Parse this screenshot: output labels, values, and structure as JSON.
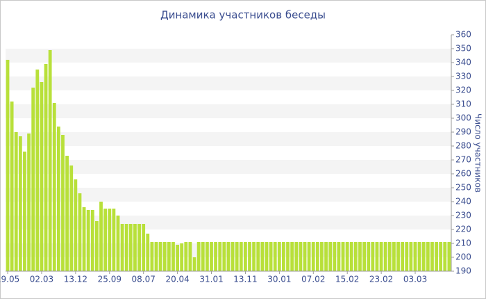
{
  "chart_data": {
    "type": "bar",
    "title": "Динамика участников беседы",
    "y_label": "Число участников",
    "categories": [
      "19.05",
      null,
      null,
      null,
      null,
      null,
      null,
      null,
      "02.03",
      null,
      null,
      null,
      null,
      null,
      null,
      null,
      "13.12",
      null,
      null,
      null,
      null,
      null,
      null,
      null,
      "25.09",
      null,
      null,
      null,
      null,
      null,
      null,
      null,
      "08.07",
      null,
      null,
      null,
      null,
      null,
      null,
      null,
      "20.04",
      null,
      null,
      null,
      null,
      null,
      null,
      null,
      "31.01",
      null,
      null,
      null,
      null,
      null,
      null,
      null,
      "13.11",
      null,
      null,
      null,
      null,
      null,
      null,
      null,
      "30.01",
      null,
      null,
      null,
      null,
      null,
      null,
      null,
      "07.02",
      null,
      null,
      null,
      null,
      null,
      null,
      null,
      "15.02",
      null,
      null,
      null,
      null,
      null,
      null,
      null,
      "23.02",
      null,
      null,
      null,
      null,
      null,
      null,
      null,
      "03.03",
      null,
      null,
      null,
      null,
      null,
      null,
      null,
      null
    ],
    "values": [
      342,
      312,
      290,
      287,
      276,
      289,
      322,
      335,
      326,
      339,
      349,
      311,
      294,
      288,
      273,
      266,
      256,
      246,
      236,
      234,
      234,
      226,
      240,
      235,
      235,
      235,
      230,
      224,
      224,
      224,
      224,
      224,
      224,
      217,
      211,
      211,
      211,
      211,
      211,
      211,
      209,
      210,
      211,
      211,
      200,
      211,
      211,
      211,
      211,
      211,
      211,
      211,
      211,
      211,
      211,
      211,
      211,
      211,
      211,
      211,
      211,
      211,
      211,
      211,
      211,
      211,
      211,
      211,
      211,
      211,
      211,
      211,
      211,
      211,
      211,
      211,
      211,
      211,
      211,
      211,
      211,
      211,
      211,
      211,
      211,
      211,
      211,
      211,
      211,
      211,
      211,
      211,
      211,
      211,
      211,
      211,
      211,
      211,
      211,
      211,
      211,
      211,
      211,
      211,
      211
    ],
    "color": "#b8e03a",
    "ylim": [
      190,
      360
    ],
    "yticks": [
      190,
      200,
      210,
      220,
      230,
      240,
      250,
      260,
      270,
      280,
      290,
      300,
      310,
      320,
      330,
      340,
      350,
      360
    ],
    "grid": true
  }
}
